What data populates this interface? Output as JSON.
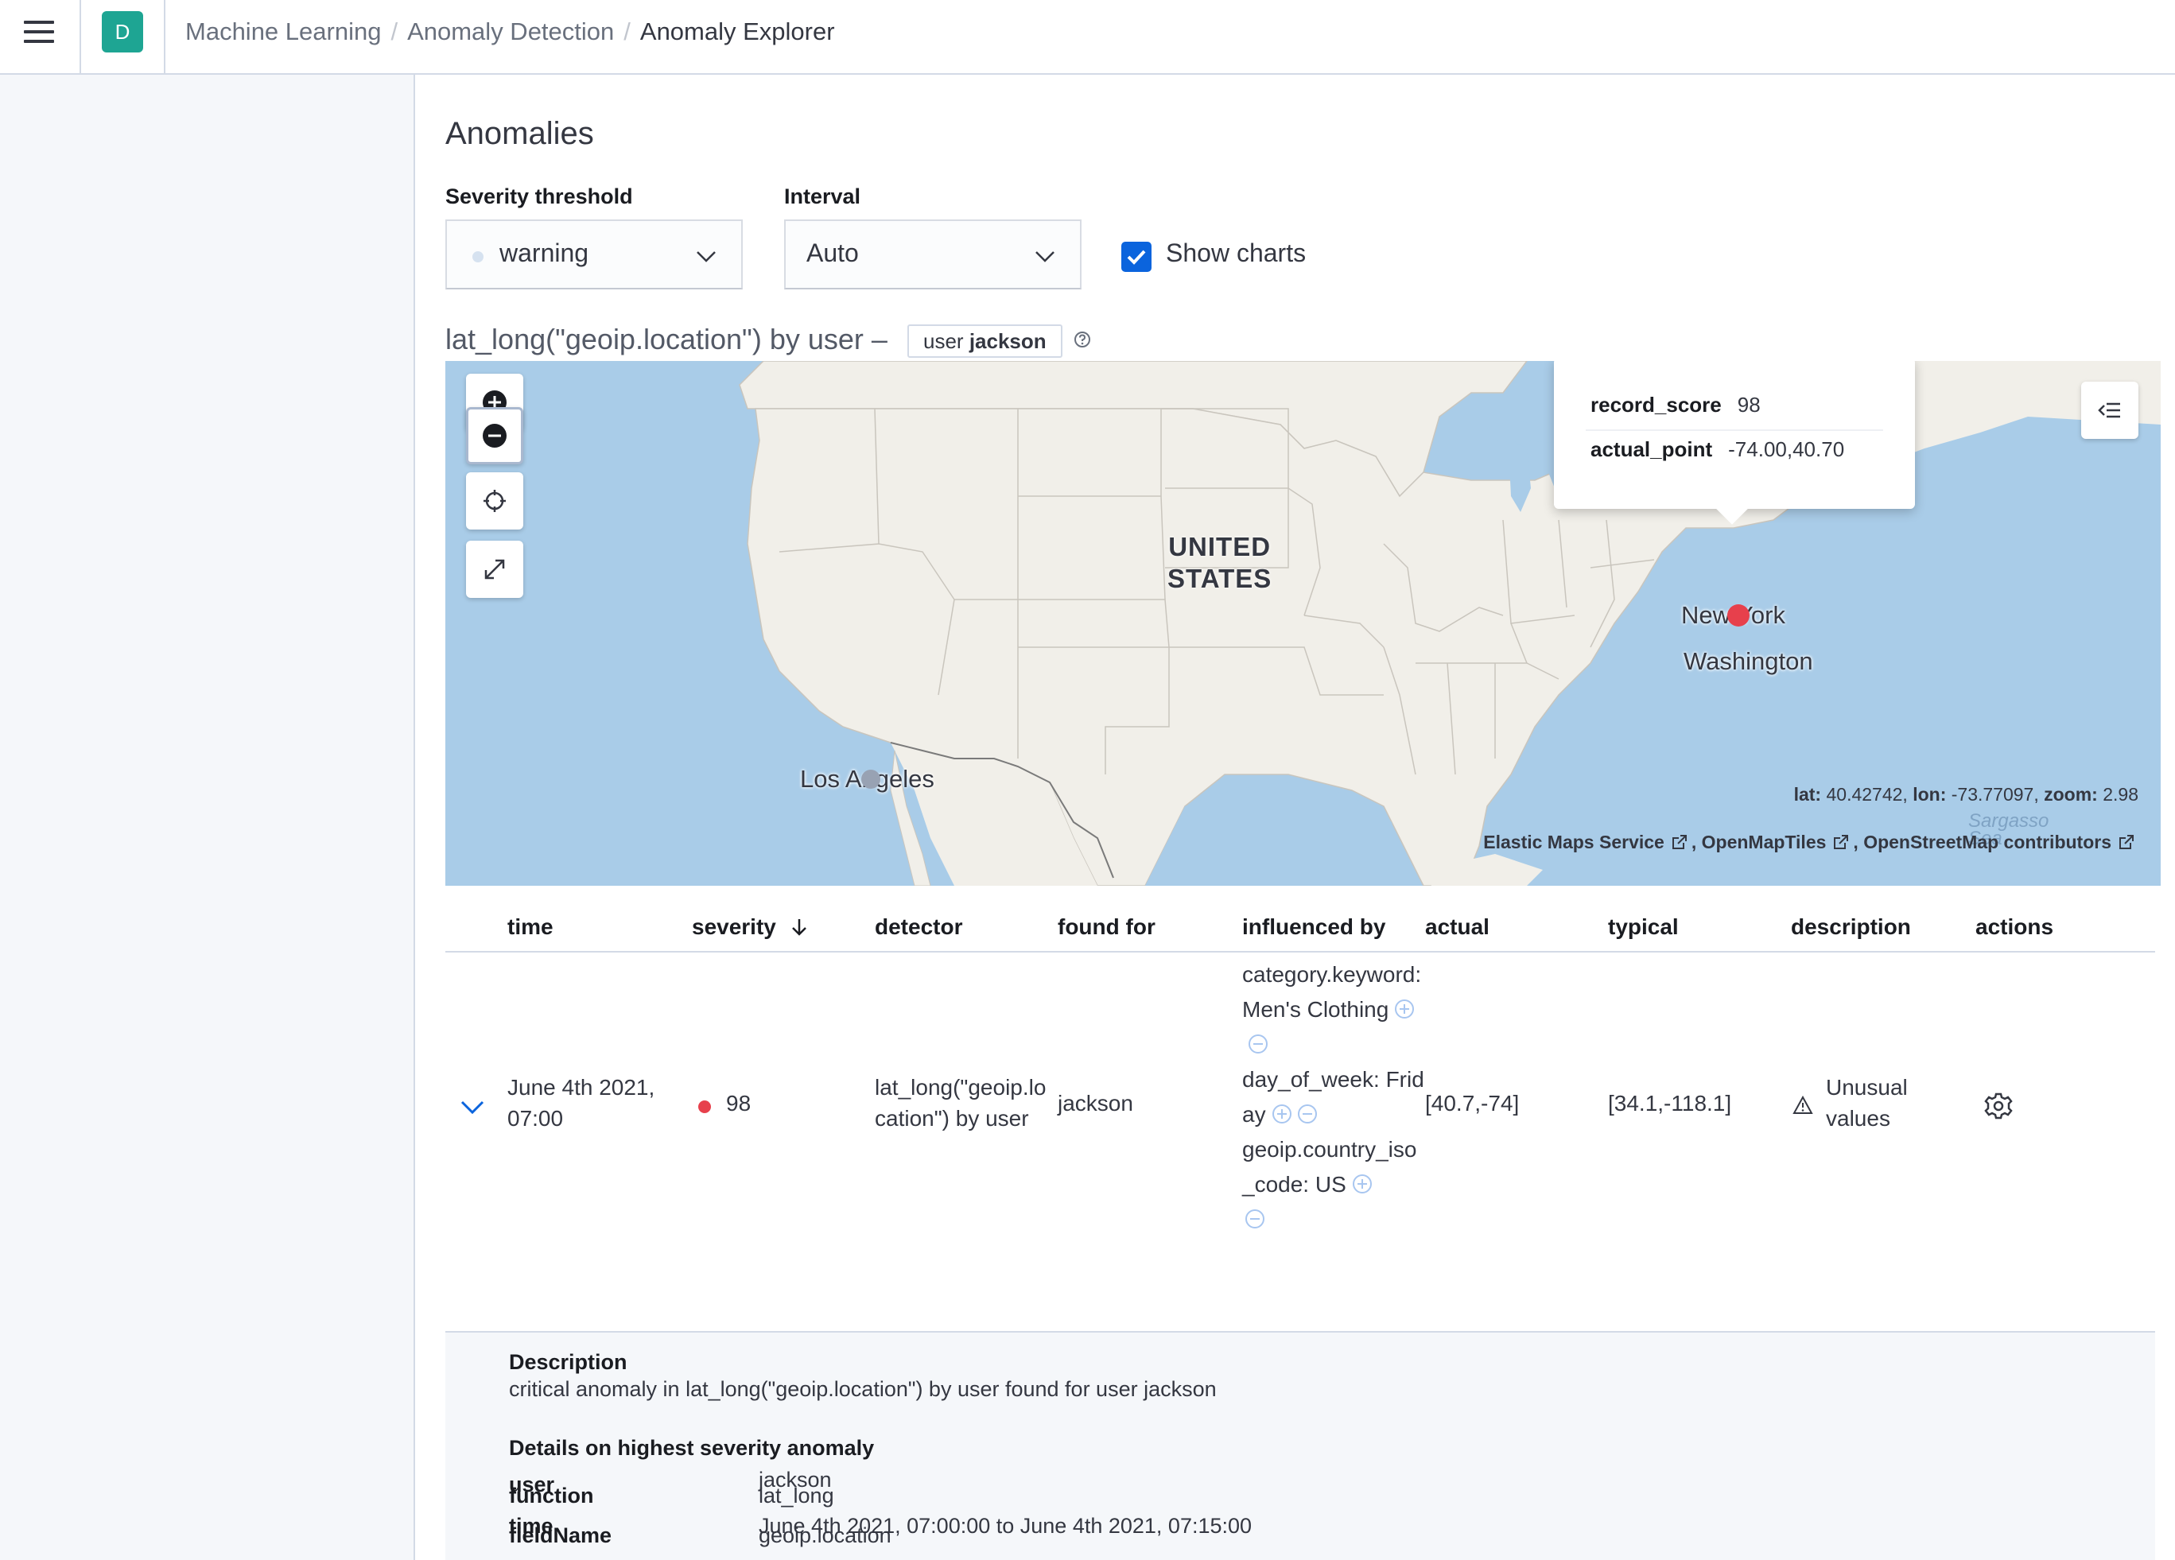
{
  "header": {
    "breadcrumbs": [
      "Machine Learning",
      "Anomaly Detection",
      "Anomaly Explorer"
    ],
    "space_initial": "D"
  },
  "page": {
    "title": "Anomalies",
    "severity_label": "Severity threshold",
    "severity_value": "warning",
    "interval_label": "Interval",
    "interval_value": "Auto",
    "show_charts_label": "Show charts",
    "show_charts_checked": true
  },
  "map": {
    "title": "lat_long(\"geoip.location\") by user –",
    "entity_field": "user",
    "entity_value": "jackson",
    "country_label_1": "UNITED",
    "country_label_2": "STATES",
    "city_ny": "New York",
    "city_washington": "Washington",
    "city_la": "Los Angeles",
    "sea_label": "Sargasso Sea",
    "tooltip": {
      "rows": [
        {
          "key": "record_score",
          "value": "98"
        },
        {
          "key": "actual_point",
          "value": "-74.00,40.70"
        }
      ]
    },
    "coords": {
      "lat_label": "lat:",
      "lat": "40.42742,",
      "lon_label": "lon:",
      "lon": "-73.77097,",
      "zoom_label": "zoom:",
      "zoom": "2.98"
    },
    "attribution": [
      "Elastic Maps Service",
      "OpenMapTiles",
      "OpenStreetMap contributors"
    ],
    "colors": {
      "water": "#a9cce8",
      "land": "#f1efe9",
      "anomaly": "#e7404c",
      "typical": "#98a2b3"
    }
  },
  "table": {
    "headers": {
      "time": "time",
      "severity": "severity",
      "detector": "detector",
      "found_for": "found for",
      "influenced_by": "influenced by",
      "actual": "actual",
      "typical": "typical",
      "description": "description",
      "actions": "actions"
    },
    "row": {
      "time_1": "June 4th 2021,",
      "time_2": "07:00",
      "severity": "98",
      "detector_1": "lat_long(\"geoip.lo",
      "detector_2": "cation\") by user",
      "found_for": "jackson",
      "influencers": [
        "category.keyword: Men's Clothing",
        "day_of_week: Friday",
        "geoip.country_iso_code: US"
      ],
      "actual": "[40.7,-74]",
      "typical": "[34.1,-118.1]",
      "description_1": "Unusual",
      "description_2": "values"
    }
  },
  "details": {
    "description_heading": "Description",
    "description_text": "critical anomaly in lat_long(\"geoip.location\") by user found for user jackson",
    "highest_heading": "Details on highest severity anomaly",
    "fields": [
      {
        "key": "user",
        "value": "jackson"
      },
      {
        "key": "time",
        "value": "June 4th 2021, 07:00:00 to June 4th 2021, 07:15:00"
      },
      {
        "key": "function",
        "value": "lat_long"
      },
      {
        "key": "fieldName",
        "value": "geoip.location"
      }
    ]
  }
}
